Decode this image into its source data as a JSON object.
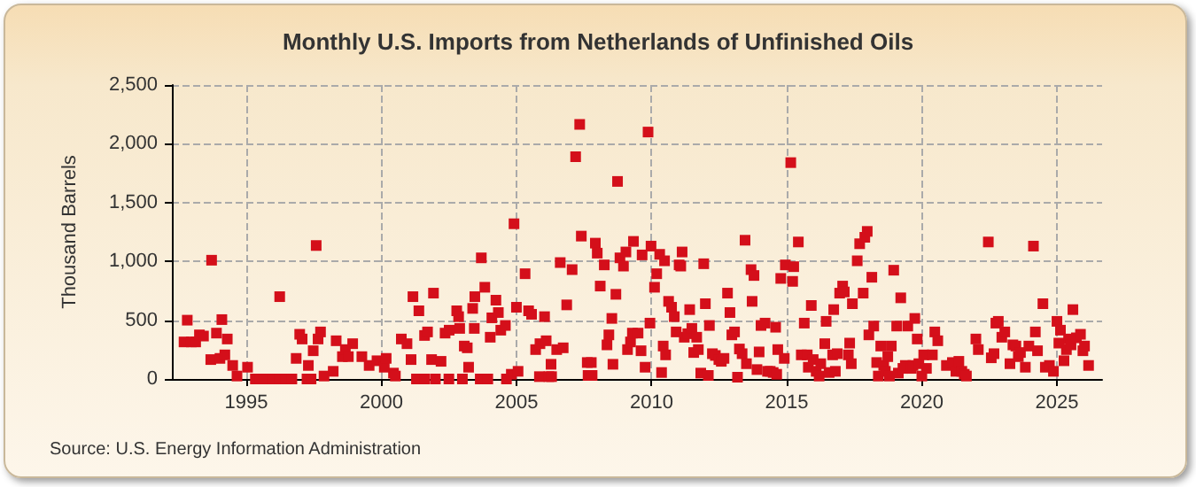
{
  "chart_data": {
    "type": "scatter",
    "title": "Monthly U.S. Imports from Netherlands of Unfinished Oils",
    "ylabel": "Thousand Barrels",
    "annotations": [
      "Source: U.S. Energy Information Administration"
    ],
    "series": [
      {
        "color": "#d40f1a",
        "x": [
          1992.7,
          1992.82,
          1992.97,
          1993.13,
          1993.27,
          1993.42,
          1993.69,
          1993.72,
          1993.9,
          1994.03,
          1994.1,
          1994.21,
          1994.3,
          1994.5,
          1994.66,
          1995.05,
          1995.34,
          1995.5,
          1995.79,
          1996.0,
          1996.24,
          1996.24,
          1996.45,
          1996.69,
          1996.85,
          1996.98,
          1997.07,
          1997.25,
          1997.3,
          1997.4,
          1997.48,
          1997.59,
          1997.66,
          1997.75,
          1997.88,
          1998.22,
          1998.33,
          1998.56,
          1998.67,
          1998.78,
          1998.94,
          1999.28,
          1999.55,
          1999.84,
          2000.11,
          2000.18,
          2000.45,
          2000.52,
          2000.74,
          2000.95,
          2001.1,
          2001.17,
          2001.3,
          2001.39,
          2001.6,
          2001.6,
          2001.71,
          2001.86,
          2001.93,
          2002.0,
          2002.21,
          2002.36,
          2002.5,
          2002.51,
          2002.79,
          2002.86,
          2002.9,
          2003.0,
          2003.07,
          2003.18,
          2003.23,
          2003.38,
          2003.44,
          2003.46,
          2003.66,
          2003.7,
          2003.83,
          2003.94,
          2004.03,
          2004.09,
          2004.24,
          2004.33,
          2004.42,
          2004.59,
          2004.63,
          2004.81,
          2004.91,
          2005.0,
          2005.06,
          2005.32,
          2005.45,
          2005.56,
          2005.71,
          2005.85,
          2005.87,
          2006.04,
          2006.1,
          2006.2,
          2006.28,
          2006.3,
          2006.49,
          2006.62,
          2006.73,
          2006.86,
          2007.06,
          2007.19,
          2007.34,
          2007.4,
          2007.62,
          2007.65,
          2007.77,
          2007.8,
          2007.92,
          2007.99,
          2008.1,
          2008.25,
          2008.35,
          2008.42,
          2008.53,
          2008.57,
          2008.68,
          2008.74,
          2008.83,
          2008.96,
          2009.05,
          2009.11,
          2009.22,
          2009.29,
          2009.33,
          2009.5,
          2009.61,
          2009.65,
          2009.76,
          2009.87,
          2009.94,
          2009.98,
          2010.11,
          2010.19,
          2010.3,
          2010.37,
          2010.43,
          2010.48,
          2010.52,
          2010.63,
          2010.74,
          2010.84,
          2010.91,
          2011.02,
          2011.08,
          2011.13,
          2011.21,
          2011.34,
          2011.41,
          2011.49,
          2011.56,
          2011.67,
          2011.73,
          2011.82,
          2011.93,
          2011.99,
          2012.1,
          2012.14,
          2012.25,
          2012.36,
          2012.49,
          2012.58,
          2012.68,
          2012.81,
          2012.9,
          2012.97,
          2013.07,
          2013.18,
          2013.25,
          2013.35,
          2013.46,
          2013.51,
          2013.68,
          2013.72,
          2013.79,
          2013.9,
          2013.98,
          2014.05,
          2014.2,
          2014.29,
          2014.39,
          2014.5,
          2014.59,
          2014.63,
          2014.67,
          2014.78,
          2014.91,
          2014.95,
          2015.15,
          2015.22,
          2015.26,
          2015.43,
          2015.54,
          2015.65,
          2015.76,
          2015.8,
          2015.91,
          2015.98,
          2016.09,
          2016.2,
          2016.26,
          2016.41,
          2016.46,
          2016.57,
          2016.7,
          2016.74,
          2016.8,
          2016.87,
          2016.96,
          2017.07,
          2017.13,
          2017.28,
          2017.33,
          2017.39,
          2017.43,
          2017.61,
          2017.7,
          2017.83,
          2017.89,
          2017.98,
          2018.04,
          2018.15,
          2018.22,
          2018.33,
          2018.39,
          2018.48,
          2018.59,
          2018.65,
          2018.74,
          2018.8,
          2018.87,
          2018.96,
          2019.07,
          2019.13,
          2019.22,
          2019.3,
          2019.39,
          2019.48,
          2019.61,
          2019.67,
          2019.74,
          2019.83,
          2019.89,
          2020.0,
          2020.07,
          2020.17,
          2020.39,
          2020.48,
          2020.59,
          2020.91,
          2021.13,
          2021.26,
          2021.37,
          2021.48,
          2021.57,
          2021.65,
          2022.0,
          2022.09,
          2022.46,
          2022.57,
          2022.67,
          2022.74,
          2022.83,
          2022.96,
          2023.07,
          2023.26,
          2023.37,
          2023.48,
          2023.57,
          2023.65,
          2023.83,
          2023.96,
          2024.13,
          2024.2,
          2024.28,
          2024.48,
          2024.57,
          2024.72,
          2024.87,
          2025.0,
          2025.07,
          2025.13,
          2025.26,
          2025.35,
          2025.43,
          2025.52,
          2025.59,
          2025.72,
          2025.87,
          2025.96,
          2026.02,
          2026.17
        ],
        "values": [
          315,
          500,
          315,
          315,
          375,
          365,
          165,
          1010,
          390,
          175,
          505,
          205,
          340,
          115,
          25,
          100,
          0,
          0,
          0,
          0,
          0,
          700,
          0,
          0,
          175,
          380,
          340,
          0,
          115,
          0,
          240,
          1135,
          340,
          400,
          25,
          65,
          325,
          190,
          250,
          190,
          300,
          190,
          115,
          155,
          100,
          175,
          50,
          25,
          340,
          300,
          165,
          700,
          0,
          580,
          370,
          0,
          400,
          165,
          730,
          0,
          150,
          390,
          0,
          415,
          580,
          530,
          430,
          0,
          280,
          265,
          100,
          600,
          430,
          700,
          0,
          1030,
          780,
          0,
          355,
          520,
          670,
          565,
          415,
          455,
          0,
          40,
          1320,
          610,
          65,
          895,
          580,
          550,
          250,
          20,
          300,
          530,
          325,
          20,
          125,
          20,
          250,
          990,
          265,
          630,
          930,
          1890,
          2165,
          1215,
          140,
          30,
          140,
          30,
          1155,
          1070,
          790,
          970,
          290,
          375,
          515,
          125,
          720,
          1680,
          1030,
          960,
          1080,
          250,
          315,
          390,
          1170,
          390,
          240,
          1055,
          100,
          2100,
          475,
          1130,
          780,
          895,
          1060,
          55,
          280,
          1005,
          205,
          660,
          610,
          530,
          400,
          970,
          960,
          1080,
          355,
          385,
          590,
          430,
          225,
          355,
          250,
          50,
          980,
          640,
          30,
          455,
          215,
          200,
          165,
          150,
          175,
          730,
          565,
          375,
          400,
          15,
          255,
          215,
          1180,
          130,
          930,
          660,
          880,
          80,
          230,
          455,
          475,
          65,
          65,
          55,
          440,
          40,
          250,
          855,
          175,
          970,
          1840,
          830,
          955,
          1165,
          205,
          475,
          205,
          100,
          625,
          165,
          65,
          25,
          130,
          300,
          490,
          55,
          205,
          590,
          65,
          215,
          730,
          790,
          740,
          205,
          305,
          130,
          640,
          1005,
          1150,
          730,
          1205,
          1255,
          375,
          865,
          450,
          140,
          25,
          280,
          115,
          65,
          190,
          25,
          280,
          925,
          450,
          50,
          690,
          90,
          115,
          450,
          90,
          115,
          515,
          340,
          130,
          25,
          205,
          90,
          205,
          400,
          325,
          115,
          140,
          65,
          150,
          65,
          40,
          25,
          340,
          250,
          1165,
          180,
          215,
          475,
          490,
          355,
          400,
          130,
          290,
          280,
          190,
          225,
          100,
          280,
          1130,
          400,
          240,
          640,
          100,
          115,
          65,
          490,
          305,
          415,
          155,
          250,
          340,
          290,
          590,
          350,
          380,
          240,
          280,
          115
        ]
      }
    ],
    "xlim": [
      1992.25,
      2026.67
    ],
    "xticks": [
      1995,
      2000,
      2005,
      2010,
      2015,
      2020,
      2025
    ],
    "ylim": [
      0,
      2500
    ],
    "yticks": [
      0,
      {
        "value": 500,
        "label": "500"
      },
      {
        "value": 1000,
        "label": "1,000"
      },
      {
        "value": 1500,
        "label": "1,500"
      },
      {
        "value": 2000,
        "label": "2,000"
      },
      {
        "value": 2500,
        "label": "2,500"
      }
    ],
    "grid": true,
    "marker": "square"
  }
}
